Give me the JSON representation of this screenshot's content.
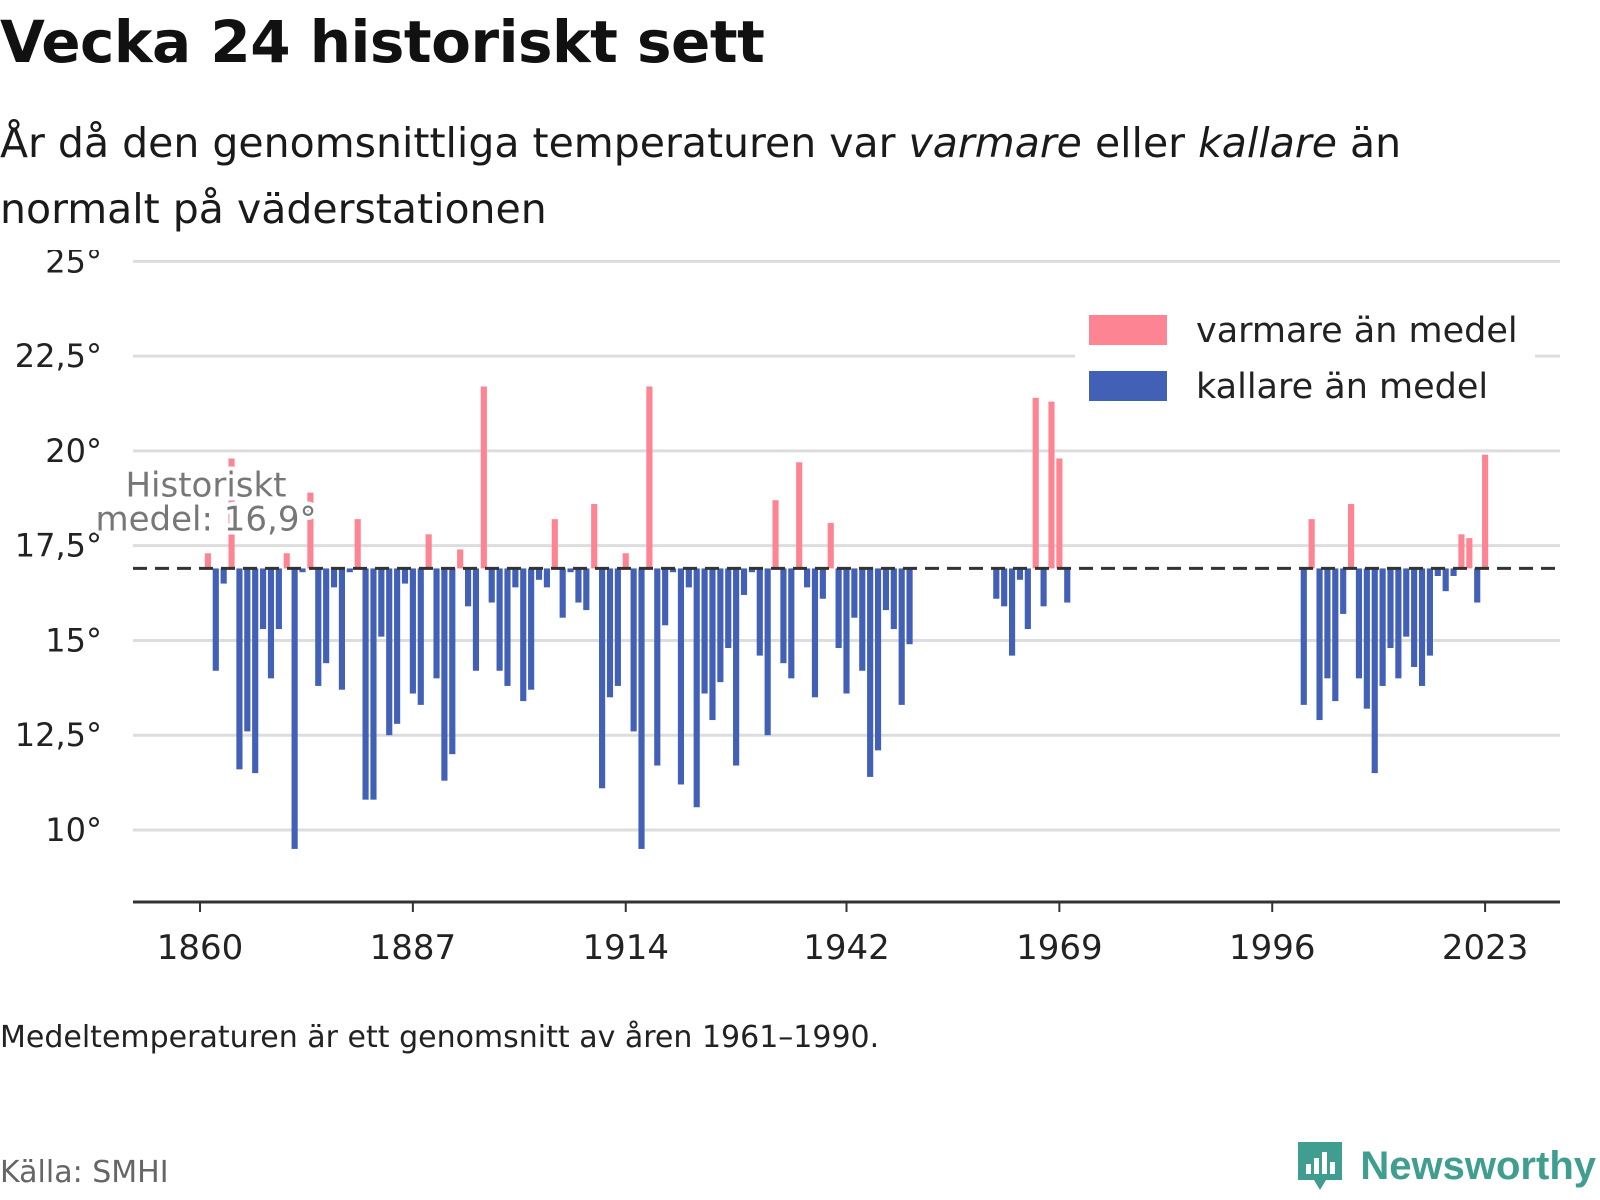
{
  "header": {
    "title": "Vecka 24 historiskt sett",
    "subtitle_pre": "År då den genomsnittliga temperaturen var ",
    "subtitle_warm": "varmare",
    "subtitle_mid": " eller ",
    "subtitle_cold": "kallare",
    "subtitle_post": " än normalt på väderstationen"
  },
  "footer": {
    "note": "Medeltemperaturen är ett genomsnitt av åren 1961–1990.",
    "source": "Källa: SMHI",
    "brand": "Newsworthy",
    "brand_color": "#3f9e8f"
  },
  "chart_data": {
    "type": "bar",
    "baseline": 16.9,
    "baseline_label": [
      "Historiskt",
      "medel: 16,9°"
    ],
    "ylim": [
      8.1,
      25.3
    ],
    "yticks": [
      10,
      12.5,
      15,
      17.5,
      20,
      22.5,
      25
    ],
    "ytick_labels": [
      "10°",
      "12,5°",
      "15°",
      "17,5°",
      "20°",
      "22,5°",
      "25°"
    ],
    "xlim": [
      1851.5,
      2032.5
    ],
    "xticks": [
      1860,
      1887,
      1914,
      1942,
      1969,
      1996,
      2023
    ],
    "xtick_labels": [
      "1860",
      "1887",
      "1914",
      "1942",
      "1969",
      "1996",
      "2023"
    ],
    "legend": {
      "position": "top-right",
      "warm_label": "varmare än medel",
      "cold_label": "kallare än medel"
    },
    "colors": {
      "warm": "#fd8593",
      "cold": "#4260b5",
      "grid": "#dddddd",
      "baseline": "#333333",
      "axis": "#333333"
    },
    "x": [
      1861,
      1862,
      1863,
      1864,
      1865,
      1866,
      1867,
      1868,
      1869,
      1870,
      1871,
      1872,
      1873,
      1874,
      1875,
      1876,
      1877,
      1878,
      1879,
      1880,
      1881,
      1882,
      1883,
      1884,
      1885,
      1886,
      1887,
      1888,
      1889,
      1890,
      1891,
      1892,
      1893,
      1894,
      1895,
      1896,
      1897,
      1898,
      1899,
      1900,
      1901,
      1902,
      1903,
      1904,
      1905,
      1906,
      1907,
      1908,
      1909,
      1910,
      1911,
      1912,
      1913,
      1914,
      1915,
      1916,
      1917,
      1918,
      1919,
      1920,
      1921,
      1922,
      1923,
      1924,
      1925,
      1926,
      1927,
      1928,
      1929,
      1930,
      1931,
      1932,
      1933,
      1934,
      1935,
      1936,
      1937,
      1938,
      1939,
      1940,
      1941,
      1942,
      1943,
      1944,
      1945,
      1946,
      1947,
      1948,
      1949,
      1950,
      1961,
      1962,
      1963,
      1964,
      1965,
      1966,
      1967,
      1968,
      1969,
      1970,
      2000,
      2001,
      2002,
      2003,
      2004,
      2005,
      2006,
      2007,
      2008,
      2009,
      2010,
      2011,
      2012,
      2013,
      2014,
      2015,
      2016,
      2017,
      2018,
      2019,
      2020,
      2021,
      2022,
      2023
    ],
    "values": [
      17.3,
      14.2,
      16.5,
      19.8,
      11.6,
      12.6,
      11.5,
      15.3,
      14.0,
      15.3,
      17.3,
      9.5,
      16.8,
      18.9,
      13.8,
      14.4,
      16.4,
      13.7,
      16.8,
      18.2,
      10.8,
      10.8,
      15.1,
      12.5,
      12.8,
      16.5,
      13.6,
      13.3,
      17.8,
      14.0,
      11.3,
      12.0,
      17.4,
      15.9,
      14.2,
      21.7,
      16.0,
      14.2,
      13.8,
      16.4,
      13.4,
      13.7,
      16.6,
      16.4,
      18.2,
      15.6,
      16.8,
      16.0,
      15.8,
      18.6,
      11.1,
      13.5,
      13.8,
      17.3,
      12.6,
      9.5,
      21.7,
      11.7,
      15.4,
      16.8,
      11.2,
      16.4,
      10.6,
      13.6,
      12.9,
      13.9,
      14.8,
      11.7,
      16.2,
      16.8,
      14.6,
      12.5,
      18.7,
      14.4,
      14.0,
      19.7,
      16.4,
      13.5,
      16.1,
      18.1,
      14.8,
      13.6,
      15.6,
      14.2,
      11.4,
      12.1,
      15.8,
      15.3,
      13.3,
      14.9,
      16.1,
      15.9,
      14.6,
      16.6,
      15.3,
      21.4,
      15.9,
      21.3,
      19.8,
      16.0,
      13.3,
      18.2,
      12.9,
      14.0,
      13.4,
      15.7,
      18.6,
      14.0,
      13.2,
      11.5,
      13.8,
      14.8,
      14.0,
      15.1,
      14.3,
      13.8,
      14.6,
      16.7,
      16.3,
      16.7,
      17.8,
      17.7,
      16.0,
      19.9
    ]
  }
}
